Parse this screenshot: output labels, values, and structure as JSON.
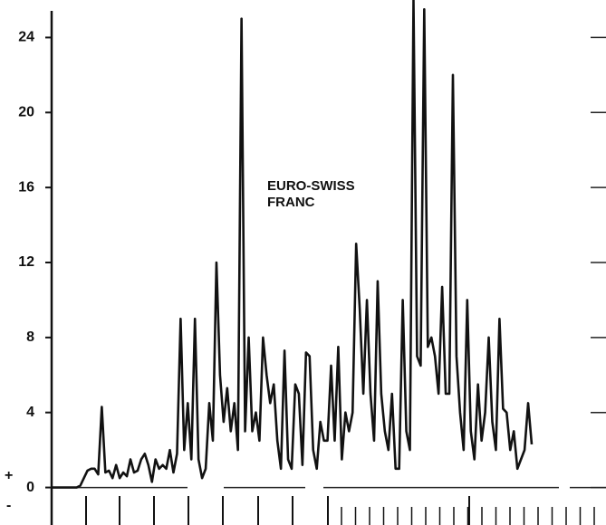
{
  "chart_data": {
    "type": "line",
    "annotations": [
      "EURO-SWISS",
      "FRANC"
    ],
    "sign_labels": [
      "+",
      "-"
    ],
    "ylim": [
      -2,
      26
    ],
    "yticks": [
      0,
      4,
      8,
      12,
      16,
      20,
      24
    ],
    "color": "#111111",
    "values": [
      0,
      0,
      0,
      0,
      0,
      0,
      0,
      0,
      0.1,
      0.5,
      0.9,
      1,
      1,
      0.7,
      4.3,
      0.8,
      0.9,
      0.5,
      1.2,
      0.5,
      0.8,
      0.6,
      1.5,
      0.8,
      0.9,
      1.5,
      1.8,
      1.2,
      0.3,
      1.5,
      1,
      1.2,
      1,
      2,
      0.8,
      1.8,
      9,
      2,
      4.5,
      1.5,
      9,
      1.5,
      0.5,
      1,
      4.5,
      2.5,
      12,
      6,
      3.5,
      5.3,
      3,
      4.5,
      2,
      25,
      3,
      8,
      3,
      4,
      2.5,
      8,
      6,
      4.5,
      5.5,
      2.5,
      1,
      7.3,
      1.5,
      1,
      5.5,
      5,
      1.2,
      7.2,
      7,
      2,
      1,
      3.5,
      2.5,
      2.5,
      6.5,
      2.5,
      7.5,
      1.5,
      4,
      3,
      4,
      13,
      9.5,
      5,
      10,
      5,
      2.5,
      11,
      5,
      3,
      2,
      5,
      1,
      1,
      10,
      3,
      2,
      26,
      7,
      6.5,
      25.5,
      7.5,
      8,
      7,
      5,
      10.7,
      5,
      5,
      22,
      7,
      4,
      2,
      10,
      3,
      1.5,
      5.5,
      2.5,
      4,
      8,
      3.5,
      2,
      9,
      4.2,
      4,
      2,
      3,
      1,
      1.5,
      2,
      4.5,
      2.3
    ]
  }
}
